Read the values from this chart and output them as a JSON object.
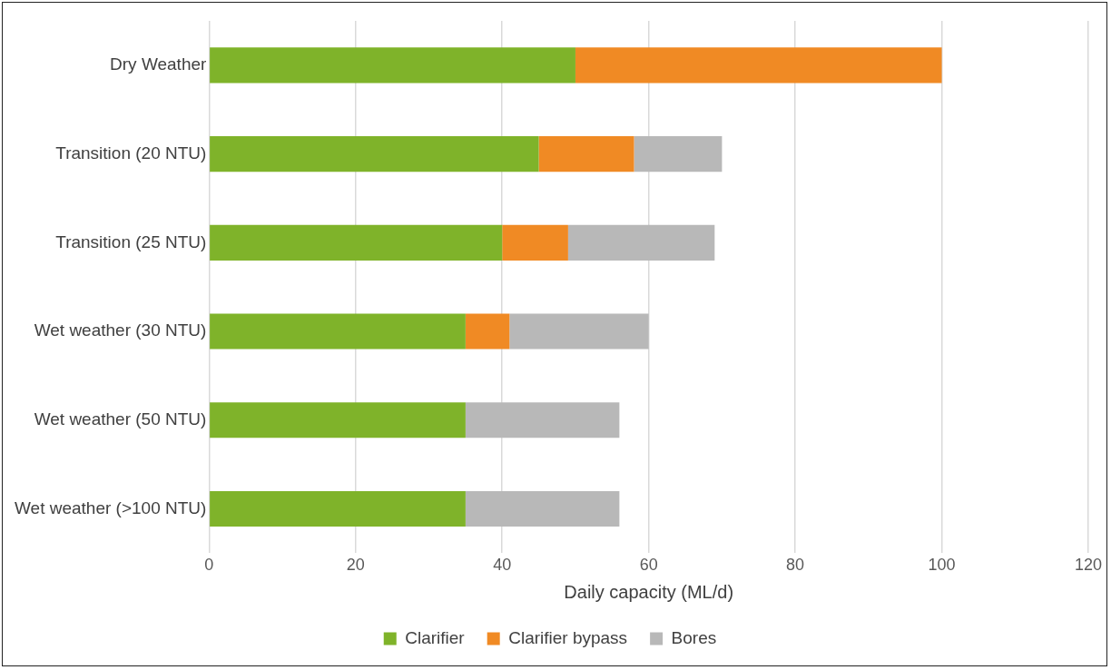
{
  "chart_data": {
    "type": "bar",
    "orientation": "horizontal",
    "stacked": true,
    "xlabel": "Daily capacity (ML/d)",
    "categories": [
      "Dry Weather",
      "Transition (20 NTU)",
      "Transition (25 NTU)",
      "Wet weather (30 NTU)",
      "Wet weather (50 NTU)",
      "Wet weather (>100 NTU)"
    ],
    "series": [
      {
        "name": "Clarifier",
        "color": "#7fb32a",
        "values": [
          50,
          45,
          40,
          35,
          35,
          35
        ]
      },
      {
        "name": "Clarifier bypass",
        "color": "#f08a24",
        "values": [
          50,
          13,
          9,
          6,
          null,
          null
        ]
      },
      {
        "name": "Bores",
        "color": "#b8b8b8",
        "values": [
          null,
          12,
          20,
          19,
          21,
          21
        ]
      }
    ],
    "xlim": [
      0,
      120
    ],
    "xticks": [
      0,
      20,
      40,
      60,
      80,
      100,
      120
    ],
    "grid": "x",
    "legend": "bottom"
  }
}
